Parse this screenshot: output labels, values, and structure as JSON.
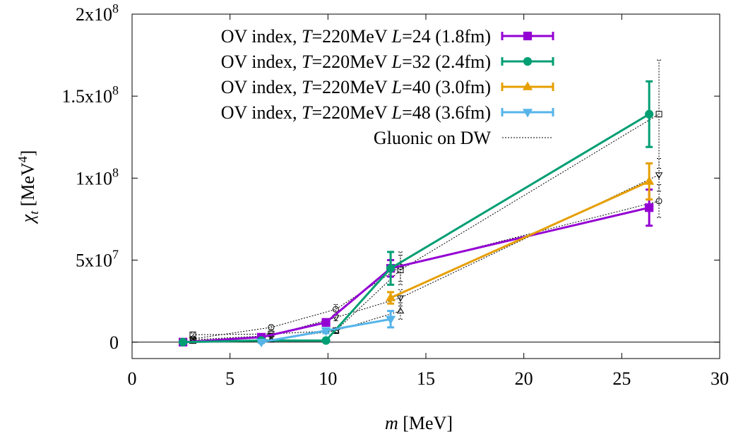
{
  "chart_data": {
    "type": "line",
    "xlabel_var": "m",
    "xlabel_unit": " [MeV]",
    "ylabel_var": "χ",
    "ylabel_sub": "t",
    "ylabel_unit": " [MeV",
    "ylabel_sup": "4",
    "ylabel_close": "]",
    "xlim": [
      0,
      30
    ],
    "ylim": [
      -10000000,
      200000000
    ],
    "xticks": [
      {
        "value": 0,
        "label": "0"
      },
      {
        "value": 5,
        "label": "5"
      },
      {
        "value": 10,
        "label": "10"
      },
      {
        "value": 15,
        "label": "15"
      },
      {
        "value": 20,
        "label": "20"
      },
      {
        "value": 25,
        "label": "25"
      },
      {
        "value": 30,
        "label": "30"
      }
    ],
    "yticks": [
      {
        "value": 0,
        "label": "0",
        "sup": ""
      },
      {
        "value": 50000000,
        "label": "5x10",
        "sup": "7"
      },
      {
        "value": 100000000,
        "label": "1x10",
        "sup": "8"
      },
      {
        "value": 150000000,
        "label": "1.5x10",
        "sup": "8"
      },
      {
        "value": 200000000,
        "label": "2x10",
        "sup": "8"
      }
    ],
    "zero_line": true,
    "legend_position": "top-right",
    "series": [
      {
        "name": "OV index, T=220MeV L=24 (1.8fm)",
        "legend": {
          "prefix": "OV index, ",
          "v1": "T",
          "mid": "=220MeV ",
          "v2": "L",
          "suffix": "=24 (1.8fm)"
        },
        "color": "#9400d3",
        "marker": "square",
        "points": [
          {
            "x": 2.6,
            "y": 0,
            "err": 500000
          },
          {
            "x": 6.6,
            "y": 3000000,
            "err": 1000000
          },
          {
            "x": 9.9,
            "y": 12000000,
            "err": 2000000
          },
          {
            "x": 13.2,
            "y": 45000000,
            "err": 5000000
          },
          {
            "x": 26.4,
            "y": 82000000,
            "err": 11000000
          }
        ]
      },
      {
        "name": "OV index, T=220MeV L=32 (2.4fm)",
        "legend": {
          "prefix": "OV index, ",
          "v1": "T",
          "mid": "=220MeV ",
          "v2": "L",
          "suffix": "=32 (2.4fm)"
        },
        "color": "#009e73",
        "marker": "circle",
        "points": [
          {
            "x": 2.6,
            "y": 0,
            "err": 500000
          },
          {
            "x": 6.6,
            "y": 1000000,
            "err": 500000
          },
          {
            "x": 9.9,
            "y": 1000000,
            "err": 500000
          },
          {
            "x": 13.2,
            "y": 45000000,
            "err": 10000000
          },
          {
            "x": 26.4,
            "y": 139000000,
            "err": 20000000
          }
        ]
      },
      {
        "name": "OV index, T=220MeV L=40 (3.0fm)",
        "legend": {
          "prefix": "OV index, ",
          "v1": "T",
          "mid": "=220MeV ",
          "v2": "L",
          "suffix": "=40 (3.0fm)"
        },
        "color": "#e69f00",
        "marker": "triangle-up",
        "points": [
          {
            "x": 13.2,
            "y": 27000000,
            "err": 3500000
          },
          {
            "x": 26.4,
            "y": 98000000,
            "err": 11000000
          }
        ]
      },
      {
        "name": "OV index, T=220MeV L=48 (3.6fm)",
        "legend": {
          "prefix": "OV index, ",
          "v1": "T",
          "mid": "=220MeV ",
          "v2": "L",
          "suffix": "=48 (3.6fm)"
        },
        "color": "#56b4e9",
        "marker": "triangle-down",
        "points": [
          {
            "x": 6.6,
            "y": 0,
            "err": 500000
          },
          {
            "x": 9.9,
            "y": 7000000,
            "err": 1500000
          },
          {
            "x": 13.2,
            "y": 14000000,
            "err": 5000000
          }
        ]
      }
    ],
    "gluonic": {
      "name": "Gluonic on DW",
      "color": "#000000",
      "series": [
        {
          "marker": "square",
          "points": [
            {
              "x": 3.1,
              "y": 4500000,
              "err": 1000000
            },
            {
              "x": 7.1,
              "y": 5000000,
              "err": 1000000
            },
            {
              "x": 10.4,
              "y": 7000000,
              "err": 1500000
            },
            {
              "x": 13.7,
              "y": 44000000,
              "err": 9000000
            },
            {
              "x": 26.9,
              "y": 139000000,
              "err": 33000000
            }
          ]
        },
        {
          "marker": "circle",
          "points": [
            {
              "x": 3.1,
              "y": 2000000,
              "err": 800000
            },
            {
              "x": 7.1,
              "y": 9000000,
              "err": 1500000
            },
            {
              "x": 10.4,
              "y": 20000000,
              "err": 3000000
            },
            {
              "x": 13.7,
              "y": 46000000,
              "err": 9000000
            },
            {
              "x": 26.9,
              "y": 86000000,
              "err": 10000000
            }
          ]
        },
        {
          "marker": "triangle-down",
          "points": [
            {
              "x": 3.1,
              "y": 1500000,
              "err": 800000
            },
            {
              "x": 7.1,
              "y": 4000000,
              "err": 1000000
            },
            {
              "x": 10.4,
              "y": 15000000,
              "err": 2000000
            },
            {
              "x": 13.7,
              "y": 27000000,
              "err": 5000000
            },
            {
              "x": 26.9,
              "y": 102000000,
              "err": 10000000
            }
          ]
        },
        {
          "marker": "triangle-up",
          "points": [
            {
              "x": 3.1,
              "y": 500000,
              "err": 500000
            },
            {
              "x": 7.1,
              "y": 1500000,
              "err": 500000
            },
            {
              "x": 10.4,
              "y": 7000000,
              "err": 1500000
            },
            {
              "x": 13.7,
              "y": 19000000,
              "err": 5000000
            }
          ]
        }
      ]
    }
  }
}
